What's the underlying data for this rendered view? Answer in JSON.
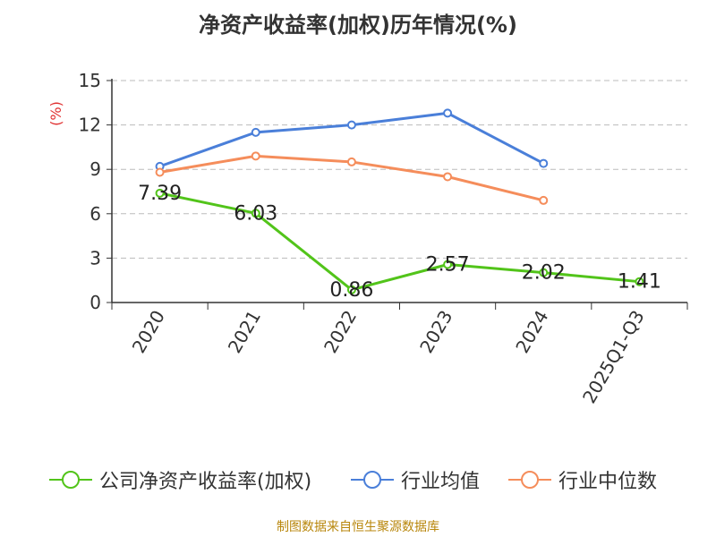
{
  "title": "净资产收益率(加权)历年情况(%)",
  "source": "制图数据来自恒生聚源数据库",
  "chart_data": {
    "type": "line",
    "title": "净资产收益率(加权)历年情况(%)",
    "ylabel": "(%)",
    "xlabel": "",
    "ylim": [
      0,
      15
    ],
    "yticks": [
      0,
      3,
      6,
      9,
      12,
      15
    ],
    "grid": true,
    "legend_position": "bottom",
    "categories": [
      "2020",
      "2021",
      "2022",
      "2023",
      "2024",
      "2025Q1-Q3"
    ],
    "series": [
      {
        "name": "公司净资产收益率(加权)",
        "color": "#52c41a",
        "values": [
          7.39,
          6.03,
          0.86,
          2.57,
          2.02,
          1.41
        ],
        "labels": [
          "7.39",
          "6.03",
          "0.86",
          "2.57",
          "2.02",
          "1.41"
        ]
      },
      {
        "name": "行业均值",
        "color": "#4a7fd9",
        "values": [
          9.2,
          11.5,
          12.0,
          12.8,
          9.4,
          null
        ]
      },
      {
        "name": "行业中位数",
        "color": "#f58d5b",
        "values": [
          8.8,
          9.9,
          9.5,
          8.5,
          6.9,
          null
        ]
      }
    ]
  }
}
